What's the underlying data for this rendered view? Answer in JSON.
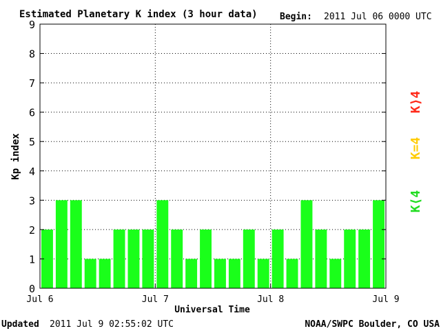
{
  "title": "Estimated Planetary K index (3 hour data)",
  "begin_label": "Begin:",
  "begin_value": "2011 Jul 06 0000 UTC",
  "footer": {
    "updated_label": "Updated",
    "updated_value": "2011 Jul  9 02:55:02 UTC",
    "source": "NOAA/SWPC Boulder, CO USA"
  },
  "legend": {
    "greater": "K⟩4",
    "equal": "K=4",
    "less": "K⟨4"
  },
  "colors": {
    "bar": "#1aff1a",
    "greater": "#ff2a1a",
    "equal": "#ffcc00",
    "less": "#22dd22",
    "frame": "#000000",
    "grid": "#000000"
  },
  "chart_data": {
    "type": "bar",
    "xlabel": "Universal Time",
    "ylabel": "Kp index",
    "ylim": [
      0,
      9
    ],
    "yticks": [
      "0",
      "1",
      "2",
      "3",
      "4",
      "5",
      "6",
      "7",
      "8",
      "9"
    ],
    "xticks": [
      "Jul 6",
      "Jul 7",
      "Jul 8",
      "Jul 9"
    ],
    "grid": "dotted",
    "values": [
      2,
      3,
      3,
      1,
      1,
      2,
      2,
      2,
      3,
      2,
      1,
      2,
      1,
      1,
      2,
      1,
      2,
      1,
      3,
      2,
      1,
      2,
      2,
      3
    ]
  }
}
